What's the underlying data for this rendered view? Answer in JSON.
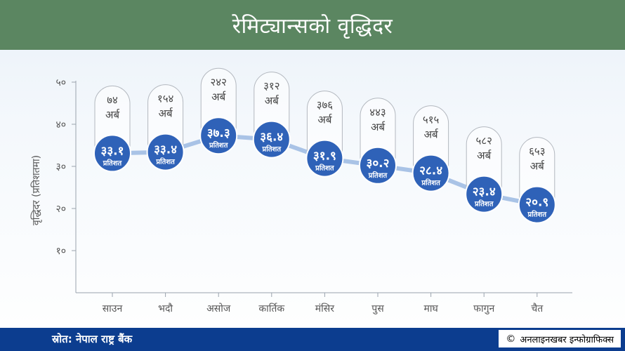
{
  "header": {
    "title": "रेमिट्यान्सको वृद्धिदर"
  },
  "footer": {
    "source": "स्रोत: नेपाल राष्ट्र बैंक",
    "credit_symbol": "©",
    "credit": "अनलाइनखबर इन्फोग्राफिक्स"
  },
  "colors": {
    "header_bg": "#5b8661",
    "footer_bg": "#0c3d8f",
    "bubble": "#2f62b8",
    "line": "#a9c3e6"
  },
  "chart_data": {
    "type": "line",
    "ylabel": "वृद्धिदर (प्रतिशतमा)",
    "ylim": [
      0,
      50
    ],
    "yticks": [
      {
        "value": 10,
        "label": "१०"
      },
      {
        "value": 20,
        "label": "२०"
      },
      {
        "value": 30,
        "label": "३०"
      },
      {
        "value": 40,
        "label": "४०"
      },
      {
        "value": 50,
        "label": "५०"
      }
    ],
    "categories": [
      "साउन",
      "भदौ",
      "असोज",
      "कार्तिक",
      "मंसिर",
      "पुस",
      "माघ",
      "फागुन",
      "चैत"
    ],
    "values": [
      33.1,
      33.4,
      37.3,
      36.4,
      31.9,
      30.2,
      28.4,
      23.4,
      20.9
    ],
    "value_labels": [
      "३३.१",
      "३३.४",
      "३७.३",
      "३६.४",
      "३१.९",
      "३०.२",
      "२८.४",
      "२३.४",
      "२०.९"
    ],
    "value_unit": "प्रतिशत",
    "amount_labels": [
      "७४",
      "१५४",
      "२४२",
      "३१२",
      "३७६",
      "४४३",
      "५१५",
      "५८२",
      "६५३"
    ],
    "amount_unit": "अर्ब"
  }
}
